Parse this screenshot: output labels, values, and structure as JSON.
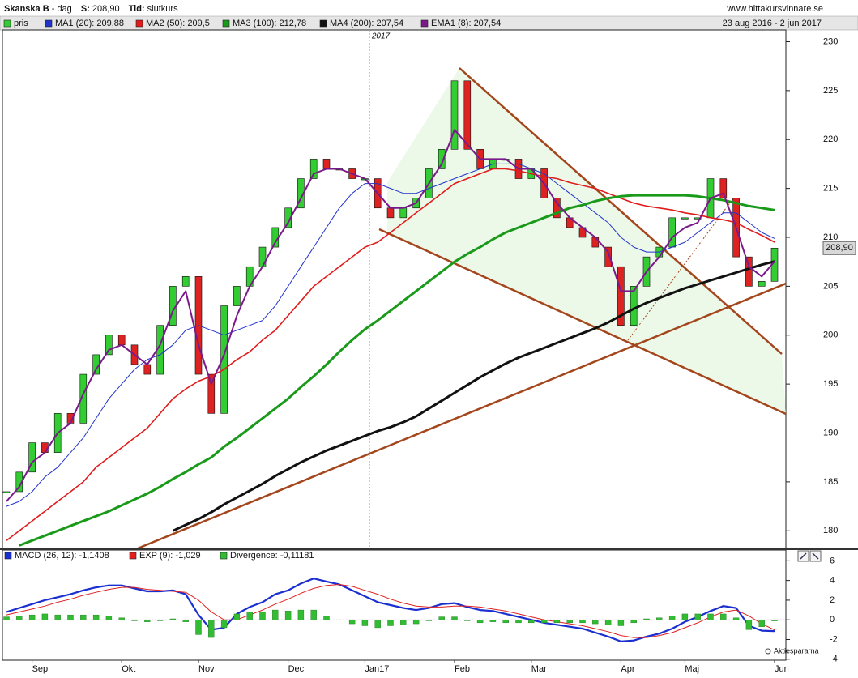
{
  "header": {
    "title": "Skanska B",
    "period": "- dag",
    "price_key": "S:",
    "price": "208,90",
    "mode_key": "Tid:",
    "mode": "slutkurs",
    "site": "www.hittakursvinnare.se",
    "range": "23 aug 2016 - 2 jun 2017"
  },
  "footer": {
    "brand": "Aktiespararna"
  },
  "chart_data": [
    {
      "type": "candlestick",
      "year_label": "2017",
      "last_label": "208,90",
      "categories": [
        null,
        null,
        "Sep",
        null,
        null,
        null,
        null,
        null,
        null,
        "Okt",
        null,
        null,
        null,
        null,
        null,
        "Nov",
        null,
        null,
        null,
        null,
        null,
        null,
        "Dec",
        null,
        null,
        null,
        null,
        null,
        "Jan17",
        null,
        null,
        null,
        null,
        null,
        null,
        "Feb",
        null,
        null,
        null,
        null,
        null,
        "Mar",
        null,
        null,
        null,
        null,
        null,
        null,
        "Apr",
        null,
        null,
        null,
        null,
        "Maj",
        null,
        null,
        null,
        null,
        null,
        null,
        "Jun"
      ],
      "ylim": [
        178.2,
        231.2
      ],
      "yticks": [
        180,
        185,
        190,
        195,
        200,
        205,
        210,
        215,
        220,
        225,
        230
      ],
      "series": [
        {
          "name": "pris",
          "type": "candle",
          "color": "#33cc33",
          "down_color": "#dd2222",
          "values": [
            184,
            186,
            189,
            188,
            192,
            191,
            196,
            198,
            200,
            199,
            197,
            196,
            201,
            205,
            206,
            196,
            192,
            203,
            205,
            207,
            209,
            211,
            213,
            216,
            218,
            217,
            217,
            216,
            216,
            213,
            212,
            213,
            214,
            217,
            219,
            226,
            219,
            217,
            218,
            218,
            216,
            217,
            214,
            212,
            211,
            210,
            209,
            207,
            201,
            205,
            208,
            209,
            212,
            212,
            212,
            216,
            214,
            208,
            205,
            205.5,
            208.9
          ]
        },
        {
          "name": "MA1 (20): 209,88",
          "type": "line",
          "color": "#2233cc",
          "values": [
            182.5,
            183,
            184,
            185.5,
            186.5,
            188,
            189.5,
            191.5,
            193.5,
            195,
            196.5,
            197.5,
            198,
            199,
            200.5,
            201,
            200.5,
            200,
            200.5,
            201,
            201.5,
            203,
            205,
            207,
            209,
            211,
            213,
            214.5,
            215.5,
            215.5,
            215,
            214.5,
            214.5,
            215,
            215.5,
            216,
            216.5,
            217,
            217.5,
            217.5,
            217.5,
            217,
            216.5,
            215.5,
            214.5,
            213.5,
            212.5,
            211.5,
            210,
            209,
            208.5,
            208.5,
            209,
            209.5,
            210.5,
            211.5,
            212.5,
            212.5,
            211.5,
            210.5,
            209.88
          ]
        },
        {
          "name": "MA2 (50): 209,5",
          "type": "line",
          "color": "#e01b1b",
          "values": [
            179,
            180,
            181,
            182,
            183,
            184,
            185,
            186.5,
            187.5,
            188.5,
            189.5,
            190.5,
            192,
            193.5,
            194.5,
            195.3,
            195.8,
            196.5,
            197.5,
            198.3,
            199.5,
            200.5,
            202,
            203.5,
            205,
            206,
            207,
            208,
            209,
            209.5,
            210.5,
            211.5,
            212.5,
            213.5,
            214.5,
            215.5,
            216,
            216.5,
            217,
            217,
            216.8,
            216.5,
            216.2,
            216,
            215.6,
            215.3,
            215,
            214.5,
            214,
            213.5,
            213.2,
            213,
            212.8,
            212.5,
            212.3,
            212,
            211.8,
            211.5,
            210.8,
            210.2,
            209.5
          ]
        },
        {
          "name": "MA3 (100): 212,78",
          "type": "line",
          "color": "#1a9a1a",
          "values": [
            null,
            178.5,
            179,
            179.5,
            180,
            180.5,
            181,
            181.5,
            182,
            182.6,
            183.2,
            183.8,
            184.5,
            185.3,
            186,
            186.8,
            187.5,
            188.6,
            189.5,
            190.5,
            191.5,
            192.5,
            193.5,
            194.7,
            195.8,
            197,
            198.3,
            199.5,
            200.6,
            201.5,
            202.5,
            203.5,
            204.5,
            205.5,
            206.5,
            207.5,
            208.3,
            209,
            209.8,
            210.5,
            211,
            211.5,
            212,
            212.5,
            213,
            213.3,
            213.7,
            214,
            214.2,
            214.3,
            214.3,
            214.3,
            214.3,
            214.3,
            214.2,
            214,
            213.8,
            213.5,
            213.2,
            213,
            212.78
          ]
        },
        {
          "name": "MA4 (200): 207,54",
          "type": "line",
          "color": "#111111",
          "values": [
            null,
            null,
            null,
            null,
            null,
            null,
            null,
            null,
            null,
            null,
            null,
            null,
            null,
            180,
            180.6,
            181.2,
            181.9,
            182.7,
            183.4,
            184.1,
            184.8,
            185.6,
            186.3,
            187,
            187.6,
            188.2,
            188.7,
            189.2,
            189.7,
            190.2,
            190.6,
            191.1,
            191.7,
            192.5,
            193.3,
            194.1,
            194.9,
            195.7,
            196.4,
            197.1,
            197.7,
            198.2,
            198.7,
            199.2,
            199.7,
            200.2,
            200.7,
            201.3,
            202,
            202.7,
            203.3,
            203.8,
            204.3,
            204.8,
            205.2,
            205.6,
            206,
            206.4,
            206.8,
            207.2,
            207.54
          ]
        },
        {
          "name": "EMA1 (8): 207,54",
          "type": "line",
          "color": "#7a1a8a",
          "values": [
            183,
            184.5,
            187,
            188,
            190,
            191,
            194,
            196.5,
            198.5,
            199,
            198,
            197,
            199,
            202.5,
            204.5,
            199,
            195,
            198,
            202,
            205,
            207,
            209.5,
            211.5,
            214,
            216.5,
            217,
            217,
            216.5,
            216,
            214.5,
            213,
            213,
            213.5,
            215.5,
            217.5,
            221,
            219.5,
            218,
            218,
            218,
            217,
            217,
            215.5,
            213.5,
            212,
            211,
            210,
            208.5,
            204.5,
            204.5,
            206.5,
            208,
            210,
            211,
            211.5,
            214,
            214.5,
            211,
            207,
            206,
            207.54
          ]
        }
      ]
    },
    {
      "type": "macd",
      "ylim": [
        -4.1,
        7.1
      ],
      "yticks": [
        -4,
        -2,
        0,
        2,
        4,
        6
      ],
      "series": [
        {
          "name": "MACD (26, 12): -1,1408",
          "type": "line",
          "color": "#1a2fd0",
          "values": [
            0.8,
            1.2,
            1.6,
            2.0,
            2.3,
            2.6,
            3.0,
            3.3,
            3.5,
            3.5,
            3.2,
            2.9,
            2.9,
            3.0,
            2.6,
            0.5,
            -1.0,
            -0.8,
            0.6,
            1.3,
            1.8,
            2.6,
            3.0,
            3.7,
            4.2,
            3.9,
            3.6,
            3.0,
            2.4,
            1.8,
            1.5,
            1.2,
            1.0,
            1.2,
            1.6,
            1.7,
            1.3,
            1.0,
            0.9,
            0.6,
            0.3,
            0.0,
            -0.3,
            -0.5,
            -0.7,
            -0.9,
            -1.3,
            -1.7,
            -2.2,
            -2.1,
            -1.7,
            -1.4,
            -0.9,
            -0.2,
            0.3,
            0.9,
            1.4,
            1.2,
            -0.6,
            -1.1,
            -1.1408
          ]
        },
        {
          "name": "EXP (9): -1,029",
          "type": "line",
          "color": "#e02020",
          "values": [
            0.5,
            0.8,
            1.1,
            1.4,
            1.8,
            2.1,
            2.5,
            2.8,
            3.1,
            3.3,
            3.3,
            3.1,
            3.0,
            2.9,
            2.8,
            2.0,
            0.8,
            0.0,
            0.0,
            0.5,
            1.0,
            1.6,
            2.1,
            2.7,
            3.2,
            3.5,
            3.6,
            3.4,
            3.0,
            2.6,
            2.1,
            1.7,
            1.4,
            1.3,
            1.3,
            1.4,
            1.4,
            1.3,
            1.1,
            0.9,
            0.6,
            0.3,
            0.0,
            -0.2,
            -0.4,
            -0.6,
            -0.9,
            -1.2,
            -1.6,
            -1.8,
            -1.8,
            -1.6,
            -1.3,
            -0.8,
            -0.3,
            0.3,
            0.8,
            1.0,
            0.4,
            -0.4,
            -1.029
          ]
        },
        {
          "name": "Divergence: -0,11181",
          "type": "bar",
          "color": "#33bb33",
          "values": [
            0.3,
            0.4,
            0.5,
            0.6,
            0.5,
            0.5,
            0.5,
            0.5,
            0.4,
            0.2,
            -0.1,
            -0.2,
            -0.1,
            0.1,
            -0.2,
            -1.5,
            -1.8,
            -0.8,
            0.6,
            0.8,
            0.8,
            1.0,
            0.9,
            1.0,
            1.0,
            0.4,
            0.0,
            -0.4,
            -0.6,
            -0.8,
            -0.6,
            -0.5,
            -0.4,
            -0.1,
            0.3,
            0.3,
            -0.1,
            -0.3,
            -0.2,
            -0.3,
            -0.3,
            -0.3,
            -0.3,
            -0.3,
            -0.3,
            -0.3,
            -0.4,
            -0.5,
            -0.6,
            -0.3,
            0.1,
            0.2,
            0.4,
            0.6,
            0.6,
            0.6,
            0.6,
            0.2,
            -1.0,
            -0.7,
            -0.11181
          ]
        }
      ]
    }
  ]
}
